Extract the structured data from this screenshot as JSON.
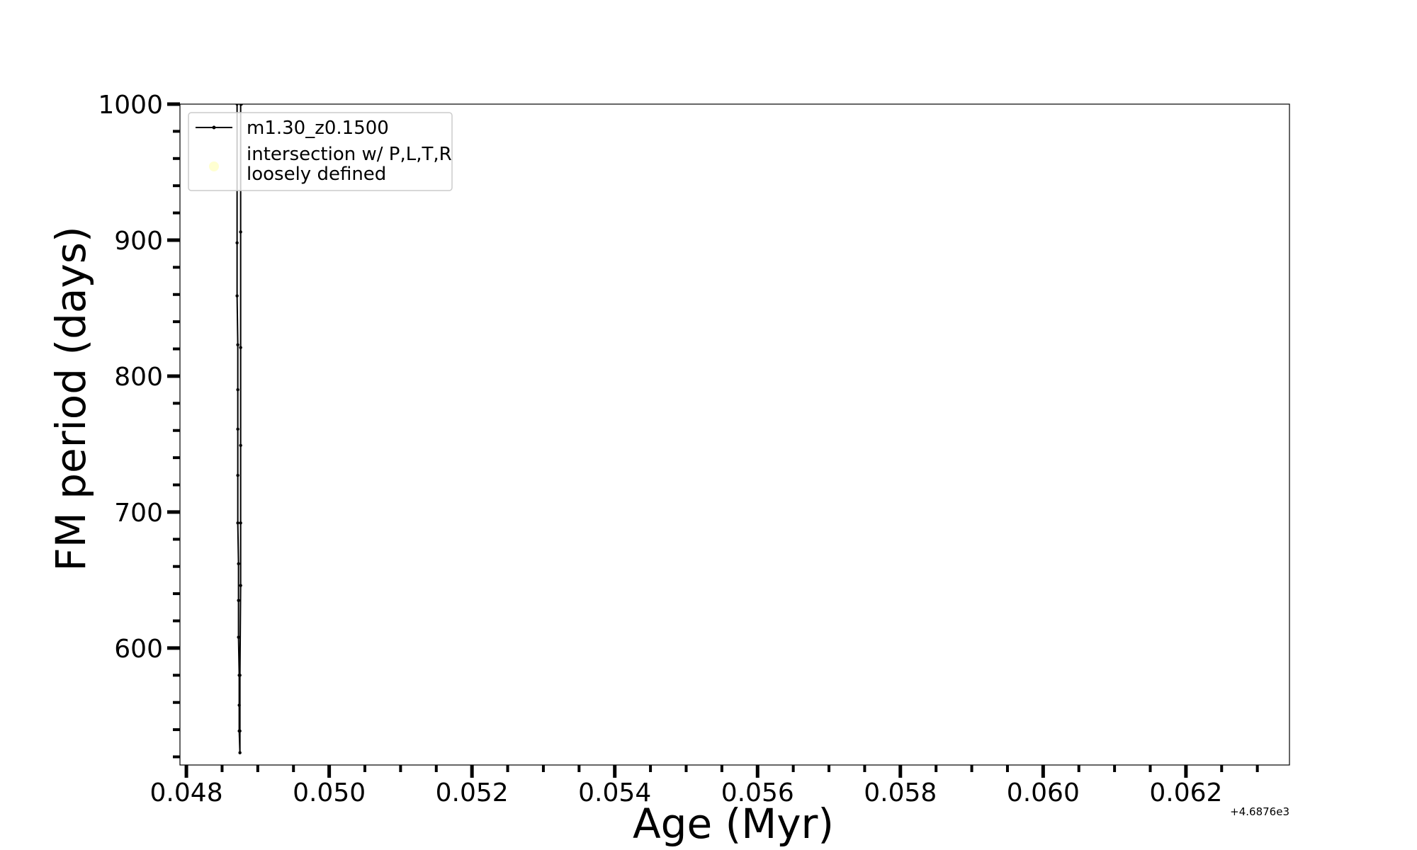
{
  "chart_data": {
    "type": "line",
    "xlabel": "Age (Myr)",
    "ylabel": "FM period (days)",
    "x_offset_label": "+4.6876e3",
    "xlim": [
      0.04791,
      0.06345
    ],
    "ylim": [
      514,
      1000
    ],
    "xticks": [
      0.048,
      0.05,
      0.052,
      0.054,
      0.056,
      0.058,
      0.06,
      0.062
    ],
    "xtick_labels": [
      "0.048",
      "0.050",
      "0.052",
      "0.054",
      "0.056",
      "0.058",
      "0.060",
      "0.062"
    ],
    "yticks": [
      600,
      700,
      800,
      900,
      1000
    ],
    "ytick_labels": [
      "600",
      "700",
      "800",
      "900",
      "1000"
    ],
    "grid": false,
    "legend_position": "top-left",
    "series": [
      {
        "name": "m1.30_z0.1500",
        "color": "#000000",
        "marker": "dot",
        "x": [
          0.04871,
          0.04871,
          0.04871,
          0.04872,
          0.04872,
          0.04872,
          0.04872,
          0.04872,
          0.04873,
          0.04873,
          0.04873,
          0.04874,
          0.04874,
          0.04874,
          0.04875,
          0.04875,
          0.04875,
          0.04876,
          0.04876,
          0.04876,
          0.04876,
          0.04876,
          0.04876,
          0.04877,
          0.04877
        ],
        "y": [
          1000,
          898,
          859,
          823,
          790,
          761,
          727,
          692,
          662,
          635,
          608,
          580,
          558,
          539,
          523,
          539,
          580,
          646,
          692,
          749,
          821,
          906,
          1000,
          1000,
          1000
        ]
      },
      {
        "name": "intersection w/ P,L,T,R\nloosely defined",
        "color": "#ffffcc",
        "marker": "circle",
        "x": [],
        "y": []
      }
    ],
    "legend": [
      {
        "label_lines": [
          "m1.30_z0.1500"
        ],
        "color": "#000000",
        "style": "line-dot"
      },
      {
        "label_lines": [
          "intersection w/ P,L,T,R",
          "loosely defined"
        ],
        "color": "#ffffcc",
        "style": "circle"
      }
    ]
  }
}
